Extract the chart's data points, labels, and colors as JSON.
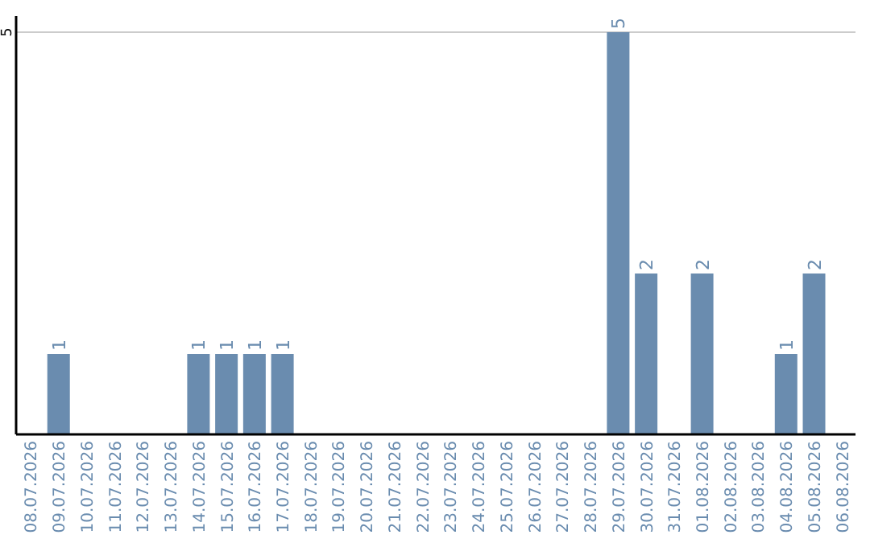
{
  "chart_data": {
    "type": "bar",
    "categories": [
      "08.07.2026",
      "09.07.2026",
      "10.07.2026",
      "11.07.2026",
      "12.07.2026",
      "13.07.2026",
      "14.07.2026",
      "15.07.2026",
      "16.07.2026",
      "17.07.2026",
      "18.07.2026",
      "19.07.2026",
      "20.07.2026",
      "21.07.2026",
      "22.07.2026",
      "23.07.2026",
      "24.07.2026",
      "25.07.2026",
      "26.07.2026",
      "27.07.2026",
      "28.07.2026",
      "29.07.2026",
      "30.07.2026",
      "31.07.2026",
      "01.08.2026",
      "02.08.2026",
      "03.08.2026",
      "04.08.2026",
      "05.08.2026",
      "06.08.2026"
    ],
    "values": [
      null,
      1,
      null,
      null,
      null,
      null,
      1,
      1,
      1,
      1,
      null,
      null,
      null,
      null,
      null,
      null,
      null,
      null,
      null,
      null,
      null,
      5,
      2,
      null,
      2,
      null,
      null,
      1,
      2,
      null
    ],
    "color": "#6a8caf",
    "ylim": [
      0,
      5.2
    ],
    "yticks": [
      5
    ],
    "grid": "y",
    "data_labels": true,
    "legend": false
  }
}
